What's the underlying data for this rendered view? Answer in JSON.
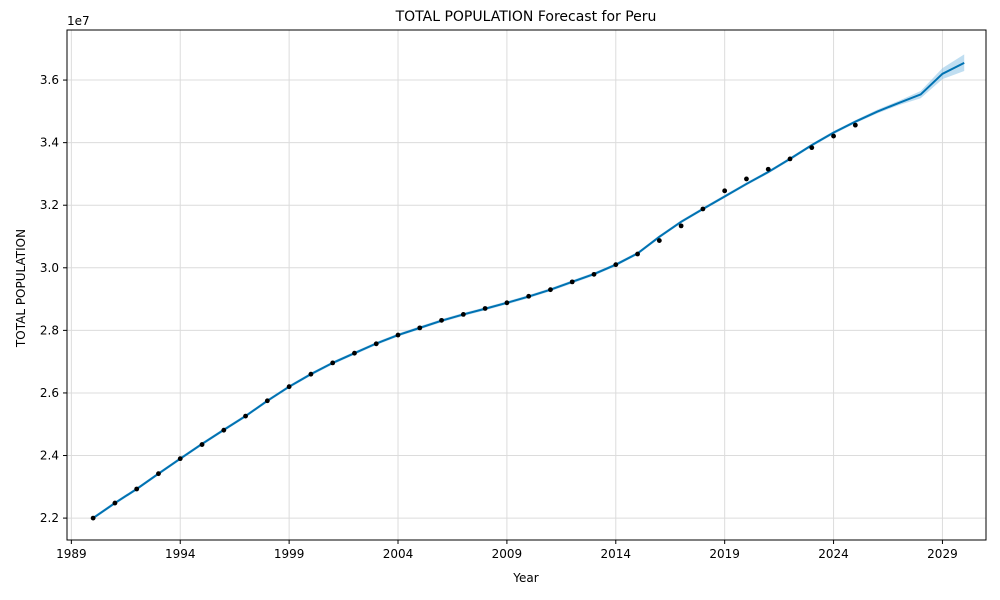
{
  "chart_data": {
    "type": "line",
    "title": "TOTAL POPULATION Forecast for Peru",
    "xlabel": "Year",
    "ylabel": "TOTAL POPULATION",
    "y_offset_label": "1e7",
    "y_scale": 10000000,
    "xlim": [
      1988.8,
      2031.0
    ],
    "ylim": [
      21300000,
      37600000
    ],
    "x_ticks": [
      1989,
      1994,
      1999,
      2004,
      2009,
      2014,
      2019,
      2024,
      2029
    ],
    "y_ticks": [
      2.2,
      2.4,
      2.6,
      2.8,
      3.0,
      3.2,
      3.4,
      3.6
    ],
    "grid": true,
    "colors": {
      "forecast": "#0072B2",
      "band": "#8cc3e6",
      "points": "#000000"
    },
    "series": [
      {
        "kind": "observed",
        "x": [
          1990,
          1991,
          1992,
          1993,
          1994,
          1995,
          1996,
          1997,
          1998,
          1999,
          2000,
          2001,
          2002,
          2003,
          2004,
          2005,
          2006,
          2007,
          2008,
          2009,
          2010,
          2011,
          2012,
          2013,
          2014,
          2015,
          2016,
          2017,
          2018,
          2019,
          2020,
          2021,
          2022,
          2023,
          2024,
          2025
        ],
        "y": [
          22000000,
          22480000,
          22930000,
          23420000,
          23900000,
          24350000,
          24810000,
          25260000,
          25750000,
          26200000,
          26600000,
          26960000,
          27270000,
          27570000,
          27850000,
          28080000,
          28320000,
          28510000,
          28700000,
          28880000,
          29090000,
          29300000,
          29550000,
          29790000,
          30100000,
          30440000,
          30870000,
          31340000,
          31880000,
          32460000,
          32840000,
          33150000,
          33480000,
          33840000,
          34210000,
          34560000
        ]
      },
      {
        "kind": "forecast",
        "x": [
          1990,
          1991,
          1992,
          1993,
          1994,
          1995,
          1996,
          1997,
          1998,
          1999,
          2000,
          2001,
          2002,
          2003,
          2004,
          2005,
          2006,
          2007,
          2008,
          2009,
          2010,
          2011,
          2012,
          2013,
          2014,
          2015,
          2016,
          2017,
          2018,
          2019,
          2020,
          2021,
          2022,
          2023,
          2024,
          2025,
          2026,
          2027,
          2028,
          2029,
          2030
        ],
        "y": [
          22000000,
          22480000,
          22930000,
          23420000,
          23900000,
          24370000,
          24820000,
          25260000,
          25750000,
          26200000,
          26600000,
          26960000,
          27270000,
          27580000,
          27850000,
          28080000,
          28310000,
          28510000,
          28690000,
          28880000,
          29080000,
          29300000,
          29550000,
          29800000,
          30100000,
          30460000,
          30990000,
          31470000,
          31880000,
          32280000,
          32680000,
          33060000,
          33480000,
          33920000,
          34320000,
          34670000,
          34990000,
          35270000,
          35540000,
          36200000,
          36550000
        ],
        "lower": [
          21950000,
          22430000,
          22880000,
          23370000,
          23850000,
          24320000,
          24770000,
          25210000,
          25700000,
          26150000,
          26550000,
          26910000,
          27220000,
          27530000,
          27800000,
          28030000,
          28260000,
          28460000,
          28640000,
          28830000,
          29030000,
          29250000,
          29500000,
          29750000,
          30050000,
          30410000,
          30940000,
          31420000,
          31830000,
          32230000,
          32630000,
          33010000,
          33430000,
          33870000,
          34270000,
          34620000,
          34930000,
          35200000,
          35420000,
          36030000,
          36290000
        ],
        "upper": [
          22050000,
          22530000,
          22980000,
          23470000,
          23950000,
          24420000,
          24870000,
          25310000,
          25800000,
          26250000,
          26650000,
          27010000,
          27320000,
          27630000,
          27900000,
          28130000,
          28360000,
          28560000,
          28740000,
          28930000,
          29130000,
          29350000,
          29600000,
          29850000,
          30150000,
          30510000,
          31040000,
          31520000,
          31930000,
          32330000,
          32730000,
          33110000,
          33530000,
          33970000,
          34370000,
          34720000,
          35050000,
          35340000,
          35650000,
          36380000,
          36820000
        ]
      }
    ]
  }
}
